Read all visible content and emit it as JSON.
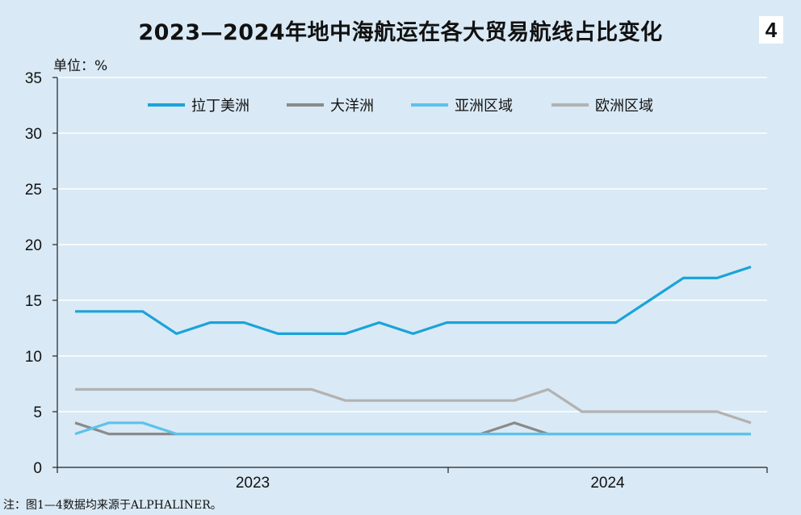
{
  "header": {
    "title": "2023—2024年地中海航运在各大贸易航线占比变化",
    "figure_number": "4",
    "unit": "单位：%"
  },
  "footer": {
    "note": "注：图1—4数据均来源于ALPHALINER。"
  },
  "chart_data": {
    "type": "line",
    "title": "2023—2024年地中海航运在各大贸易航线占比变化",
    "ylabel": "单位：%",
    "ylim": [
      0,
      35
    ],
    "yticks": [
      "0",
      "5",
      "10",
      "15",
      "20",
      "25",
      "30",
      "35"
    ],
    "xticks": [
      "2023",
      "2024"
    ],
    "grid": "horizontal",
    "legend_position": "top",
    "series": [
      {
        "name": "拉丁美洲",
        "color": "#1aa3d9",
        "values": [
          14,
          14,
          14,
          12,
          13,
          13,
          12,
          12,
          12,
          13,
          12,
          13,
          13,
          13,
          13,
          13,
          13,
          15,
          17,
          17,
          18
        ]
      },
      {
        "name": "大洋洲",
        "color": "#8a8a8a",
        "values": [
          4,
          3,
          3,
          3,
          3,
          3,
          3,
          3,
          3,
          3,
          3,
          3,
          3,
          4,
          3,
          3,
          3,
          3,
          3,
          3,
          3
        ]
      },
      {
        "name": "亚洲区域",
        "color": "#5cc2ec",
        "values": [
          3,
          4,
          4,
          3,
          3,
          3,
          3,
          3,
          3,
          3,
          3,
          3,
          3,
          3,
          3,
          3,
          3,
          3,
          3,
          3,
          3
        ]
      },
      {
        "name": "欧洲区域",
        "color": "#b2b2b2",
        "values": [
          7,
          7,
          7,
          7,
          7,
          7,
          7,
          7,
          6,
          6,
          6,
          6,
          6,
          6,
          7,
          5,
          5,
          5,
          5,
          5,
          4
        ]
      }
    ]
  }
}
